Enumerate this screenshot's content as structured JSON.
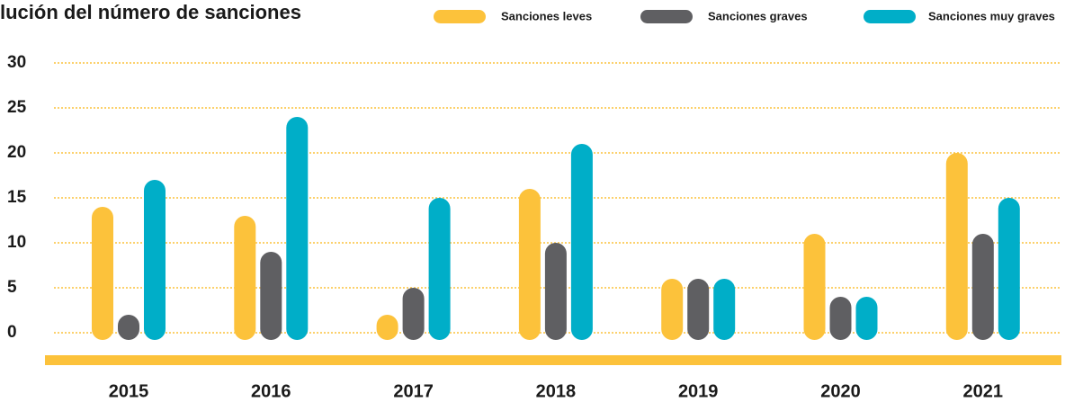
{
  "chart_data": {
    "type": "bar",
    "title": "lución del número de sanciones",
    "categories": [
      "2015",
      "2016",
      "2017",
      "2018",
      "2019",
      "2020",
      "2021"
    ],
    "series": [
      {
        "name": "Sanciones leves",
        "color": "#fcc23b",
        "values": [
          14,
          13,
          2,
          16,
          6,
          11,
          20
        ]
      },
      {
        "name": "Sanciones graves",
        "color": "#5f5f62",
        "values": [
          2,
          9,
          5,
          10,
          6,
          4,
          11
        ]
      },
      {
        "name": "Sanciones muy graves",
        "color": "#00aec8",
        "values": [
          17,
          24,
          15,
          21,
          6,
          4,
          15
        ]
      }
    ],
    "ylim": [
      0,
      30
    ],
    "yticks": [
      0,
      5,
      10,
      15,
      20,
      25,
      30
    ],
    "grid": true,
    "legend": "top"
  }
}
